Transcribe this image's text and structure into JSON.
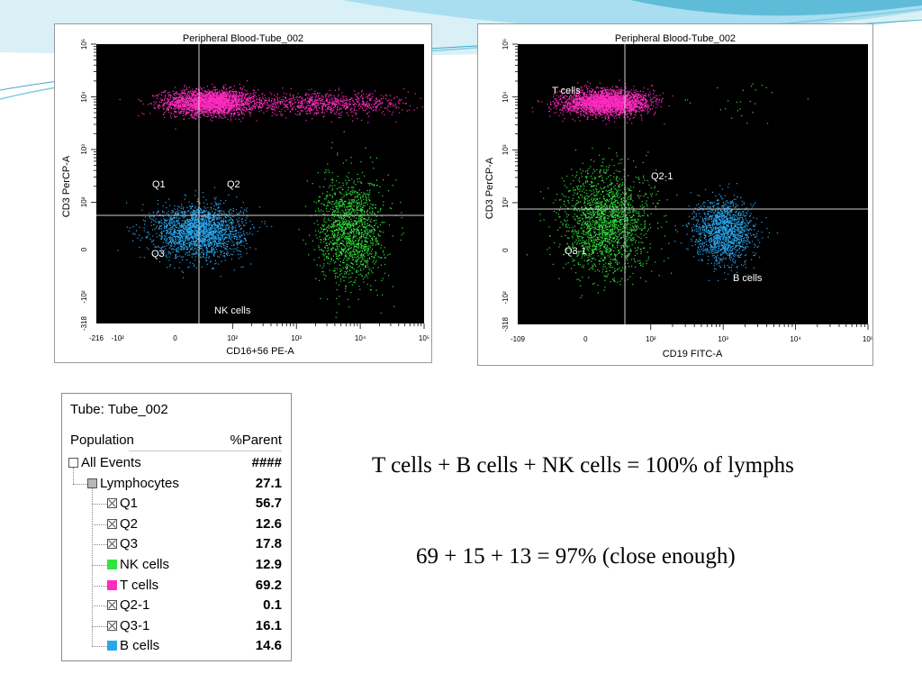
{
  "deco_colors": {
    "teal_light": "#bfe6f2",
    "teal": "#7fcde3",
    "teal_dark": "#3fa9c9"
  },
  "plot_left": {
    "title": "Peripheral Blood-Tube_002",
    "xlabel": "CD16+56 PE-A",
    "ylabel": "CD3 PerCP-A",
    "x_ticks": [
      "-216",
      "-10²",
      "0",
      "10²",
      "10³",
      "10⁴",
      "10⁵"
    ],
    "y_ticks": [
      "-318",
      "-10²",
      "0",
      "10²",
      "10³",
      "10⁴",
      "10⁵"
    ],
    "gate_labels": [
      "Q1",
      "Q2",
      "Q3",
      "NK cells"
    ]
  },
  "plot_right": {
    "title": "Peripheral Blood-Tube_002",
    "xlabel": "CD19 FITC-A",
    "ylabel": "CD3 PerCP-A",
    "x_ticks": [
      "-109",
      "0",
      "10²",
      "10³",
      "10⁴",
      "10⁵"
    ],
    "y_ticks": [
      "-318",
      "-10²",
      "0",
      "10²",
      "10³",
      "10⁴",
      "10⁵"
    ],
    "gate_labels": [
      "T cells",
      "Q2-1",
      "Q3-1",
      "B cells"
    ]
  },
  "chart_data": [
    {
      "type": "scatter",
      "title": "Peripheral Blood-Tube_002",
      "xlabel": "CD16+56 PE-A",
      "ylabel": "CD3 PerCP-A",
      "x_scale": "biexponential",
      "y_scale": "biexponential",
      "xlim": [
        -216,
        100000
      ],
      "ylim": [
        -318,
        100000
      ],
      "quadrant_gate": {
        "x": 1000,
        "y": 600
      },
      "series": [
        {
          "name": "Q1",
          "color": "#ff2bbf",
          "center": [
            60,
            8000
          ],
          "spread": [
            0.35,
            0.12
          ],
          "count": 2600
        },
        {
          "name": "Q2",
          "color": "#ff2bbf",
          "center": [
            2500,
            7500
          ],
          "spread": [
            0.7,
            0.1
          ],
          "count": 900
        },
        {
          "name": "Q3",
          "color": "#2aa6ee",
          "center": [
            40,
            40
          ],
          "spread": [
            0.35,
            0.25
          ],
          "count": 2200
        },
        {
          "name": "NK cells",
          "color": "#31e33c",
          "center": [
            7000,
            40
          ],
          "spread": [
            0.25,
            0.5
          ],
          "count": 1500
        }
      ]
    },
    {
      "type": "scatter",
      "title": "Peripheral Blood-Tube_002",
      "xlabel": "CD19 FITC-A",
      "ylabel": "CD3 PerCP-A",
      "x_scale": "biexponential",
      "y_scale": "biexponential",
      "xlim": [
        -109,
        100000
      ],
      "ylim": [
        -318,
        100000
      ],
      "quadrant_gate": {
        "x": 250,
        "y": 800
      },
      "series": [
        {
          "name": "T cells",
          "color": "#ff2bbf",
          "center": [
            30,
            8000
          ],
          "spread": [
            0.3,
            0.12
          ],
          "count": 2600
        },
        {
          "name": "Q2-1",
          "color": "#31e33c",
          "center": [
            2000,
            8000
          ],
          "spread": [
            0.4,
            0.2
          ],
          "count": 25
        },
        {
          "name": "Q3-1",
          "color": "#31e33c",
          "center": [
            30,
            60
          ],
          "spread": [
            0.3,
            0.5
          ],
          "count": 1900
        },
        {
          "name": "B cells",
          "color": "#2aa6ee",
          "center": [
            1000,
            40
          ],
          "spread": [
            0.2,
            0.3
          ],
          "count": 1500
        }
      ]
    }
  ],
  "hierarchy": {
    "tube_label": "Tube:  Tube_002",
    "col_population": "Population",
    "col_parent": "%Parent",
    "rows": [
      {
        "label": "All Events",
        "value": "####",
        "box": "empty",
        "level": 0
      },
      {
        "label": "Lymphocytes",
        "value": "27.1",
        "box": "gray",
        "level": 1
      },
      {
        "label": "Q1",
        "value": "56.7",
        "box": "x",
        "level": 2
      },
      {
        "label": "Q2",
        "value": "12.6",
        "box": "x",
        "level": 2
      },
      {
        "label": "Q3",
        "value": "17.8",
        "box": "x",
        "level": 2
      },
      {
        "label": "NK cells",
        "value": "12.9",
        "box": "color",
        "color": "#31e33c",
        "level": 2
      },
      {
        "label": "T cells",
        "value": "69.2",
        "box": "color",
        "color": "#ff2bbf",
        "level": 2
      },
      {
        "label": "Q2-1",
        "value": "0.1",
        "box": "x",
        "level": 2
      },
      {
        "label": "Q3-1",
        "value": "16.1",
        "box": "x",
        "level": 2
      },
      {
        "label": "B cells",
        "value": "14.6",
        "box": "color",
        "color": "#2aa6ee",
        "level": 2
      }
    ]
  },
  "text": {
    "equation1": "T cells + B cells + NK cells = 100% of lymphs",
    "equation2": "69 + 15 + 13 = 97% (close enough)"
  }
}
